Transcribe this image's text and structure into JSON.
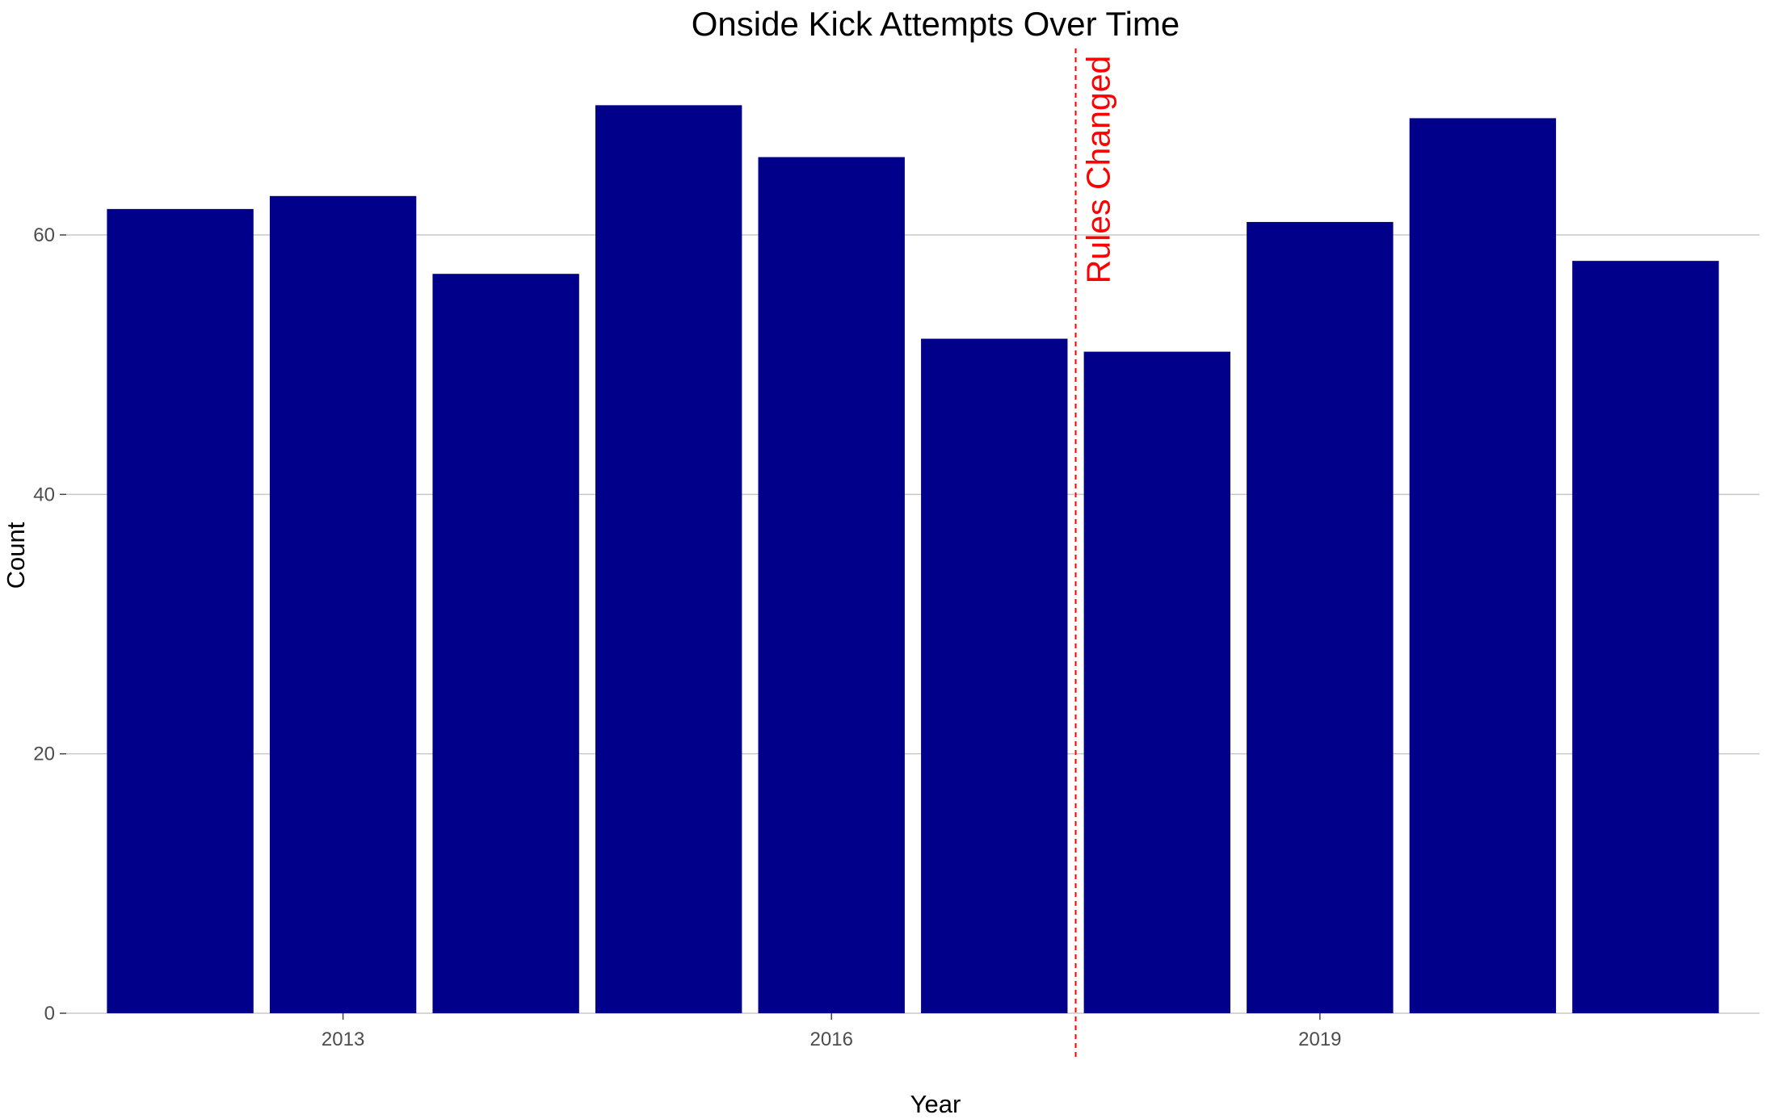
{
  "chart_data": {
    "type": "bar",
    "title": "Onside Kick Attempts Over Time",
    "xlabel": "Year",
    "ylabel": "Count",
    "x": [
      2012,
      2013,
      2014,
      2015,
      2016,
      2017,
      2018,
      2019,
      2020,
      2021
    ],
    "values": [
      62,
      63,
      57,
      70,
      66,
      52,
      51,
      61,
      69,
      58
    ],
    "xticks": [
      2013,
      2016,
      2019
    ],
    "xlim": [
      2011.3,
      2021.7
    ],
    "yticks": [
      0,
      20,
      40,
      60
    ],
    "ylim": [
      0,
      75
    ],
    "bar_color": "#00008B",
    "grid": "horizontal major only",
    "legend": "none",
    "annotations": [
      {
        "type": "vline",
        "x": 2017.5,
        "style": "dashed",
        "color": "#FF0000",
        "label": "Rules Changed",
        "label_orientation": "vertical"
      }
    ]
  }
}
